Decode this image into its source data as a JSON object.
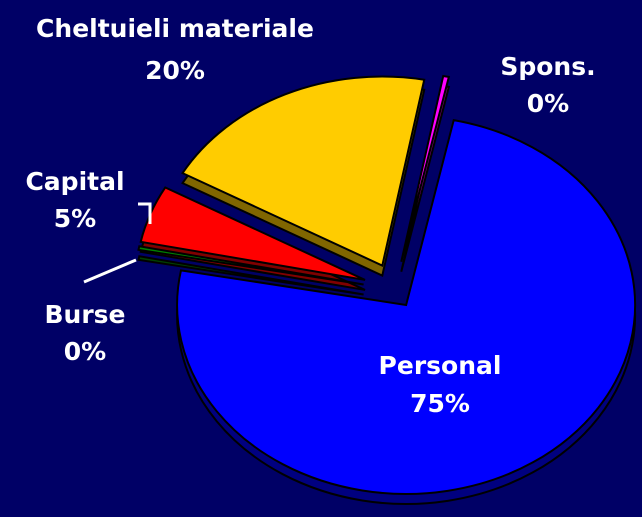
{
  "chart_data": {
    "type": "pie",
    "categories": [
      "Personal",
      "Burse",
      "Capital",
      "Cheltuieli materiale",
      "Spons."
    ],
    "values": [
      74.6,
      0.3,
      4.9,
      19.8,
      0.4
    ],
    "value_labels": [
      "75%",
      "0%",
      "5%",
      "20%",
      "0%"
    ],
    "colors": [
      "#0000ff",
      "#008000",
      "#ff0000",
      "#ffcc00",
      "#ff00ff"
    ]
  }
}
